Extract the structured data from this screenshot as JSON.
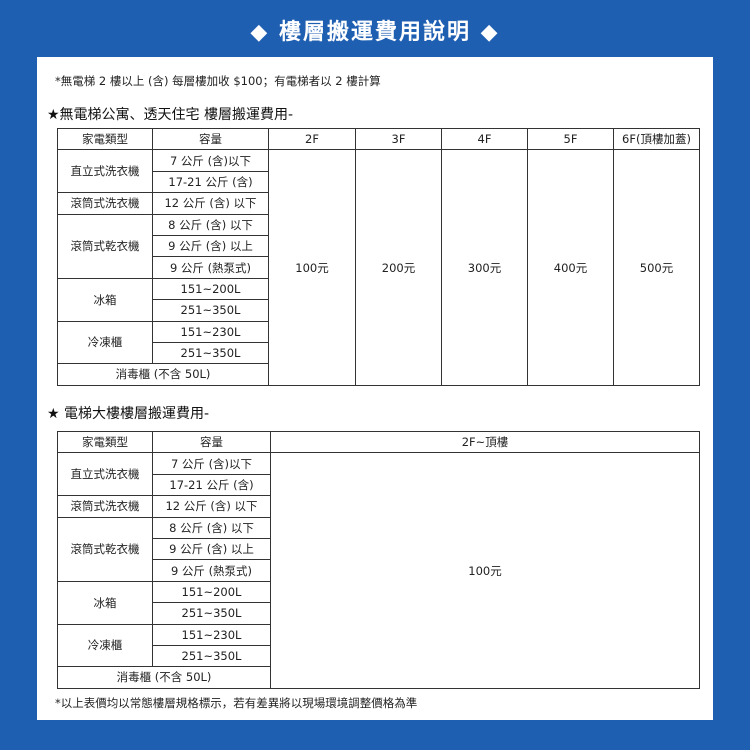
{
  "title": "◆ 樓層搬運費用說明 ◆",
  "note": "*無電梯 2 樓以上 (含) 每層樓加收 $100；有電梯者以 2 樓計算",
  "sections": [
    {
      "heading": "★無電梯公寓、透天住宅 樓層搬運費用-",
      "table": {
        "header": [
          "家電類型",
          "容量",
          "2F",
          "3F",
          "4F",
          "5F",
          "6F(頂樓加蓋)"
        ],
        "groups": [
          {
            "type": "直立式洗衣機",
            "capacities": [
              "7 公斤 (含)以下",
              "17-21 公斤 (含)"
            ]
          },
          {
            "type": "滾筒式洗衣機",
            "capacities": [
              "12 公斤 (含) 以下"
            ]
          },
          {
            "type": "滾筒式乾衣機",
            "capacities": [
              "8 公斤 (含) 以下",
              "9 公斤 (含) 以上",
              "9 公斤 (熱泵式)"
            ]
          },
          {
            "type": "冰箱",
            "capacities": [
              "151~200L",
              "251~350L"
            ]
          },
          {
            "type": "冷凍櫃",
            "capacities": [
              "151~230L",
              "251~350L"
            ]
          }
        ],
        "last_row": "消毒櫃 (不含 50L)",
        "prices": [
          "100元",
          "200元",
          "300元",
          "400元",
          "500元"
        ]
      }
    },
    {
      "heading": "★ 電梯大樓樓層搬運費用-",
      "table": {
        "header": [
          "家電類型",
          "容量",
          "2F~頂樓"
        ],
        "groups": [
          {
            "type": "直立式洗衣機",
            "capacities": [
              "7 公斤 (含)以下",
              "17-21 公斤 (含)"
            ]
          },
          {
            "type": "滾筒式洗衣機",
            "capacities": [
              "12 公斤 (含) 以下"
            ]
          },
          {
            "type": "滾筒式乾衣機",
            "capacities": [
              "8 公斤 (含) 以下",
              "9 公斤 (含) 以上",
              "9 公斤 (熱泵式)"
            ]
          },
          {
            "type": "冰箱",
            "capacities": [
              "151~200L",
              "251~350L"
            ]
          },
          {
            "type": "冷凍櫃",
            "capacities": [
              "151~230L",
              "251~350L"
            ]
          }
        ],
        "last_row": "消毒櫃 (不含 50L)",
        "prices": [
          "100元"
        ]
      }
    }
  ],
  "footer": "*以上表價均以常態樓層規格標示，若有差異將以現場環境調整價格為準"
}
